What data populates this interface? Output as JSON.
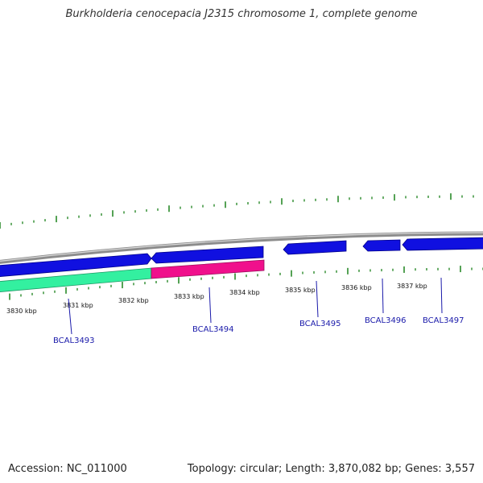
{
  "title": "Burkholderia cenocepacia J2315 chromosome 1, complete genome",
  "footer": {
    "accession": "Accession: NC_011000",
    "summary": "Topology: circular; Length: 3,870,082 bp; Genes: 3,557"
  },
  "colors": {
    "backbone": "#8c8c8c",
    "cds": "#1010e0",
    "feature_green": "#33f0a0",
    "feature_pink": "#f0108c",
    "tick": "#2a8a2a",
    "gene_label": "#1a1aaa",
    "label_line": "#1a1aaa"
  },
  "ticks": {
    "labels": [
      "3830 kbp",
      "3831 kbp",
      "3832 kbp",
      "3833 kbp",
      "3834 kbp",
      "3835 kbp",
      "3836 kbp",
      "3837 kbp"
    ]
  },
  "genes": [
    {
      "label": "BCAL3493"
    },
    {
      "label": "BCAL3494"
    },
    {
      "label": "BCAL3495"
    },
    {
      "label": "BCAL3496"
    },
    {
      "label": "BCAL3497"
    }
  ]
}
